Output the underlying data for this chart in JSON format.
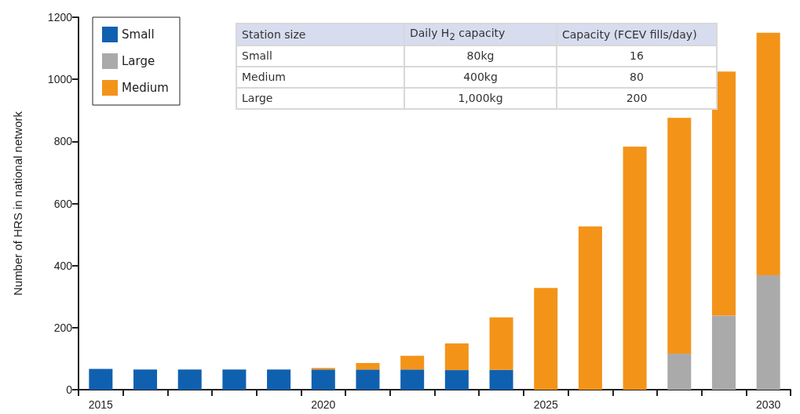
{
  "chart_data": {
    "type": "bar",
    "stacked": true,
    "ylabel": "Number of HRS in national network",
    "categories": [
      "2015",
      null,
      null,
      null,
      null,
      "2020",
      null,
      null,
      null,
      null,
      "2025",
      null,
      null,
      null,
      null,
      "2030"
    ],
    "series": [
      {
        "name": "Small",
        "color": "#1060b0",
        "values": [
          67,
          65,
          65,
          65,
          65,
          65,
          65,
          65,
          63,
          64,
          null,
          null,
          null,
          null,
          null,
          null
        ]
      },
      {
        "name": "Large",
        "color": "#aaaaaa",
        "values": [
          null,
          null,
          null,
          null,
          null,
          null,
          null,
          null,
          null,
          null,
          null,
          null,
          null,
          116,
          239,
          369
        ]
      },
      {
        "name": "Medium",
        "color": "#f39419",
        "values": [
          null,
          null,
          null,
          null,
          null,
          5,
          21,
          44,
          86,
          169,
          328,
          526,
          783,
          760,
          786,
          781
        ]
      }
    ],
    "ylim": [
      0,
      1200
    ],
    "yticks": [
      0,
      200,
      400,
      600,
      800,
      1000,
      1200
    ],
    "grid": false,
    "legend": "top left",
    "annotations": [
      "Station size",
      "Daily H$_{2}$ capacity",
      "Capacity (FCEV fills/day)",
      "Small",
      "80kg",
      "16",
      "Medium",
      "400kg",
      "80",
      "Large",
      "1,000kg",
      "200"
    ]
  }
}
